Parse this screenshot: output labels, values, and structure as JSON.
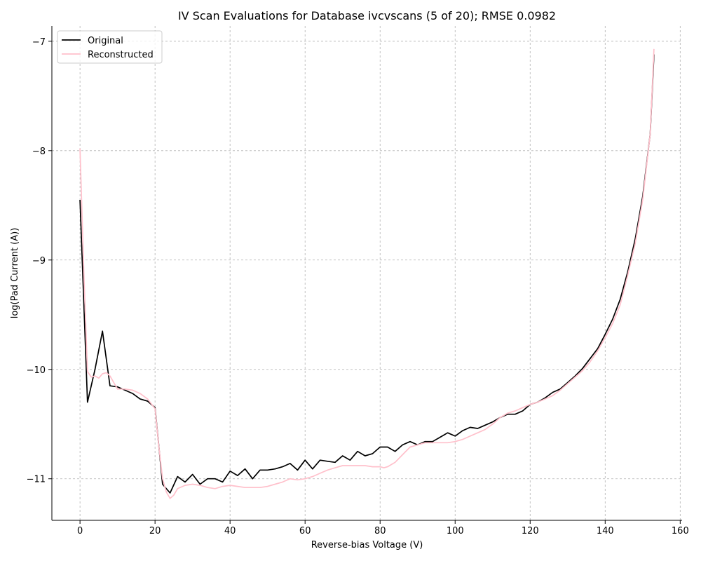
{
  "chart_data": {
    "type": "line",
    "title": "IV Scan Evaluations for Database ivcvscans (5 of 20); RMSE 0.0982",
    "xlabel": "Reverse-bias Voltage (V)",
    "ylabel": "log(Pad Current (A))",
    "xlim": [
      -7.5,
      160.5
    ],
    "ylim": [
      -11.38,
      -6.86
    ],
    "xticks": [
      0,
      20,
      40,
      60,
      80,
      100,
      120,
      140,
      160
    ],
    "yticks": [
      -11,
      -10,
      -9,
      -8,
      -7
    ],
    "grid": true,
    "legend_position": "top-left",
    "series": [
      {
        "name": "Original",
        "color": "#000000",
        "x": [
          0,
          2,
          4,
          6,
          8,
          10,
          12,
          14,
          16,
          18,
          20,
          22,
          24,
          26,
          28,
          30,
          32,
          34,
          36,
          38,
          40,
          42,
          44,
          46,
          48,
          50,
          52,
          54,
          56,
          58,
          60,
          62,
          64,
          66,
          68,
          70,
          72,
          74,
          76,
          78,
          80,
          82,
          84,
          86,
          88,
          90,
          92,
          94,
          96,
          98,
          100,
          102,
          104,
          106,
          108,
          110,
          112,
          114,
          116,
          118,
          120,
          122,
          124,
          126,
          128,
          130,
          132,
          134,
          136,
          138,
          140,
          142,
          144,
          146,
          148,
          150,
          152,
          153
        ],
        "values": [
          -8.45,
          -10.3,
          -10.0,
          -9.65,
          -10.15,
          -10.16,
          -10.19,
          -10.22,
          -10.27,
          -10.29,
          -10.35,
          -11.05,
          -11.13,
          -10.98,
          -11.03,
          -10.96,
          -11.05,
          -11.0,
          -11.0,
          -11.03,
          -10.93,
          -10.97,
          -10.91,
          -11.0,
          -10.92,
          -10.92,
          -10.91,
          -10.89,
          -10.86,
          -10.92,
          -10.83,
          -10.91,
          -10.83,
          -10.84,
          -10.85,
          -10.79,
          -10.83,
          -10.75,
          -10.79,
          -10.77,
          -10.71,
          -10.71,
          -10.75,
          -10.69,
          -10.66,
          -10.69,
          -10.66,
          -10.66,
          -10.62,
          -10.58,
          -10.61,
          -10.56,
          -10.53,
          -10.54,
          -10.51,
          -10.48,
          -10.44,
          -10.41,
          -10.41,
          -10.38,
          -10.32,
          -10.3,
          -10.26,
          -10.21,
          -10.18,
          -10.12,
          -10.06,
          -9.99,
          -9.9,
          -9.81,
          -9.68,
          -9.54,
          -9.36,
          -9.11,
          -8.81,
          -8.42,
          -7.85,
          -7.12
        ]
      },
      {
        "name": "Reconstructed",
        "color": "#ffc0cb",
        "x": [
          0,
          1,
          2,
          3,
          4,
          5,
          6,
          7,
          8,
          9,
          10,
          12,
          14,
          16,
          18,
          20,
          21,
          22,
          23,
          24,
          25,
          26,
          28,
          30,
          32,
          34,
          36,
          38,
          40,
          42,
          44,
          46,
          48,
          50,
          52,
          54,
          56,
          58,
          60,
          62,
          64,
          66,
          68,
          70,
          72,
          74,
          76,
          78,
          80,
          81,
          82,
          84,
          86,
          88,
          90,
          92,
          94,
          96,
          98,
          100,
          102,
          104,
          106,
          108,
          110,
          112,
          114,
          116,
          118,
          120,
          122,
          124,
          126,
          128,
          130,
          132,
          134,
          136,
          138,
          140,
          142,
          144,
          146,
          148,
          150,
          152,
          153
        ],
        "values": [
          -7.98,
          -9.1,
          -10.02,
          -10.07,
          -10.06,
          -10.08,
          -10.04,
          -10.03,
          -10.06,
          -10.12,
          -10.18,
          -10.18,
          -10.19,
          -10.22,
          -10.27,
          -10.36,
          -10.7,
          -11.0,
          -11.12,
          -11.18,
          -11.15,
          -11.09,
          -11.06,
          -11.05,
          -11.06,
          -11.08,
          -11.09,
          -11.07,
          -11.06,
          -11.07,
          -11.08,
          -11.08,
          -11.08,
          -11.07,
          -11.05,
          -11.03,
          -11.0,
          -11.01,
          -11.0,
          -10.98,
          -10.95,
          -10.92,
          -10.9,
          -10.88,
          -10.88,
          -10.88,
          -10.88,
          -10.89,
          -10.89,
          -10.9,
          -10.89,
          -10.85,
          -10.78,
          -10.71,
          -10.69,
          -10.67,
          -10.67,
          -10.67,
          -10.67,
          -10.66,
          -10.64,
          -10.61,
          -10.58,
          -10.55,
          -10.5,
          -10.44,
          -10.4,
          -10.38,
          -10.35,
          -10.32,
          -10.3,
          -10.27,
          -10.24,
          -10.19,
          -10.13,
          -10.07,
          -10.01,
          -9.93,
          -9.83,
          -9.71,
          -9.58,
          -9.41,
          -9.14,
          -8.85,
          -8.45,
          -7.85,
          -7.07
        ]
      }
    ]
  }
}
